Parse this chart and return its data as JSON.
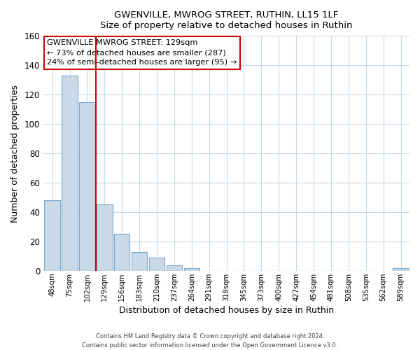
{
  "title": "GWENVILLE, MWROG STREET, RUTHIN, LL15 1LF",
  "subtitle": "Size of property relative to detached houses in Ruthin",
  "xlabel": "Distribution of detached houses by size in Ruthin",
  "ylabel": "Number of detached properties",
  "bar_labels": [
    "48sqm",
    "75sqm",
    "102sqm",
    "129sqm",
    "156sqm",
    "183sqm",
    "210sqm",
    "237sqm",
    "264sqm",
    "291sqm",
    "318sqm",
    "345sqm",
    "373sqm",
    "400sqm",
    "427sqm",
    "454sqm",
    "481sqm",
    "508sqm",
    "535sqm",
    "562sqm",
    "589sqm"
  ],
  "bar_values": [
    48,
    133,
    115,
    45,
    25,
    13,
    9,
    4,
    2,
    0,
    0,
    0,
    0,
    0,
    0,
    0,
    0,
    0,
    0,
    0,
    2
  ],
  "bar_color": "#c9d9e8",
  "bar_edge_color": "#7aaac8",
  "vline_color": "#cc0000",
  "vline_x": 2.5,
  "ylim": [
    0,
    160
  ],
  "yticks": [
    0,
    20,
    40,
    60,
    80,
    100,
    120,
    140,
    160
  ],
  "annotation_title": "GWENVILLE MWROG STREET: 129sqm",
  "annotation_line1": "← 73% of detached houses are smaller (287)",
  "annotation_line2": "24% of semi-detached houses are larger (95) →",
  "footer1": "Contains HM Land Registry data © Crown copyright and database right 2024.",
  "footer2": "Contains public sector information licensed under the Open Government Licence v3.0.",
  "background_color": "#ffffff",
  "grid_color": "#c8d8e8"
}
